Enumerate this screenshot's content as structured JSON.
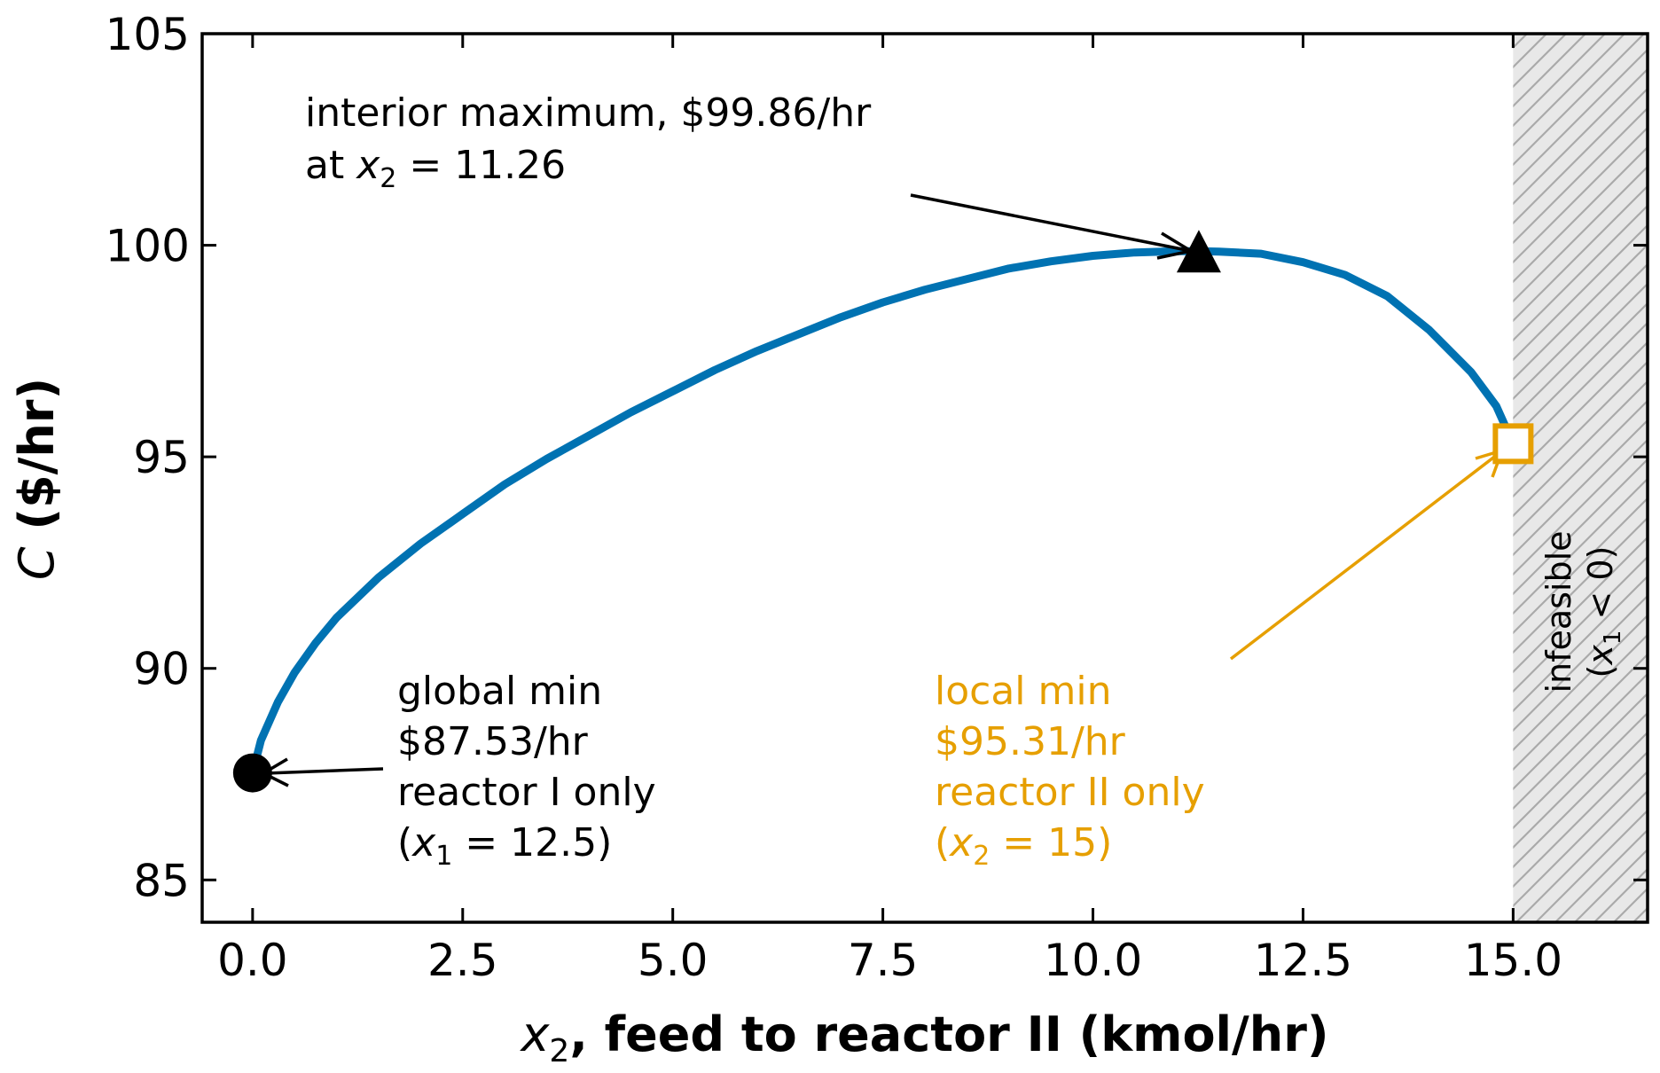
{
  "chart_data": {
    "type": "line",
    "title": "",
    "xlabel": {
      "var": "x",
      "sub": "2",
      "rest": ", feed to reactor II (kmol/hr)"
    },
    "ylabel": {
      "var": "C",
      "rest": " ($/hr)"
    },
    "xlim": [
      -0.6,
      16.6
    ],
    "ylim": [
      84,
      105
    ],
    "xticks": [
      "0.0",
      "2.5",
      "5.0",
      "7.5",
      "10.0",
      "12.5",
      "15.0"
    ],
    "xtick_values": [
      0,
      2.5,
      5,
      7.5,
      10,
      12.5,
      15
    ],
    "yticks": [
      "85",
      "90",
      "95",
      "100",
      "105"
    ],
    "ytick_values": [
      85,
      90,
      95,
      100,
      105
    ],
    "grid": false,
    "series": [
      {
        "color": "#0072B2",
        "x": [
          0,
          0.1,
          0.3,
          0.5,
          0.75,
          1,
          1.5,
          2,
          2.5,
          3,
          3.5,
          4,
          4.5,
          5,
          5.5,
          6,
          6.5,
          7,
          7.5,
          8,
          8.5,
          9,
          9.5,
          10,
          10.5,
          11,
          11.26,
          11.5,
          12,
          12.5,
          13,
          13.5,
          14,
          14.5,
          14.8,
          15
        ],
        "y": [
          87.53,
          88.3,
          89.2,
          89.9,
          90.6,
          91.2,
          92.15,
          92.95,
          93.65,
          94.35,
          94.95,
          95.5,
          96.05,
          96.55,
          97.05,
          97.5,
          97.9,
          98.3,
          98.65,
          98.95,
          99.2,
          99.45,
          99.62,
          99.75,
          99.83,
          99.86,
          99.86,
          99.85,
          99.8,
          99.6,
          99.3,
          98.8,
          98.0,
          97.0,
          96.2,
          95.31
        ]
      }
    ],
    "markers": [
      {
        "name": "global-min",
        "shape": "circle",
        "color": "#000000",
        "x": 0,
        "y": 87.53
      },
      {
        "name": "interior-max",
        "shape": "triangle",
        "color": "#000000",
        "x": 11.26,
        "y": 99.86
      },
      {
        "name": "local-min",
        "shape": "square-open",
        "color": "#E69F00",
        "x": 15,
        "y": 95.31
      }
    ],
    "shaded_region": {
      "x_from": 15,
      "x_to": 16.6,
      "fill": "#e8e8e8",
      "hatch": "#aaaaaa"
    },
    "annotations": {
      "interior_max": {
        "line1": "interior maximum, $99.86/hr",
        "line2_prefix": "at ",
        "line2_var": "x",
        "line2_sub": "2",
        "line2_rest": " = 11.26"
      },
      "global_min": {
        "line1": "global min",
        "line2": "$87.53/hr",
        "line3": "reactor I only",
        "line4_open": "(",
        "line4_var": "x",
        "line4_sub": "1",
        "line4_rest": " = 12.5)"
      },
      "local_min": {
        "line1": "local min",
        "line2": "$95.31/hr",
        "line3": "reactor II only",
        "line4_open": "(",
        "line4_var": "x",
        "line4_sub": "2",
        "line4_rest": " = 15)"
      },
      "infeasible": {
        "line1": "infeasible",
        "line2_open": "(",
        "line2_var": "x",
        "line2_sub": "1",
        "line2_rest": " < 0)"
      }
    }
  }
}
